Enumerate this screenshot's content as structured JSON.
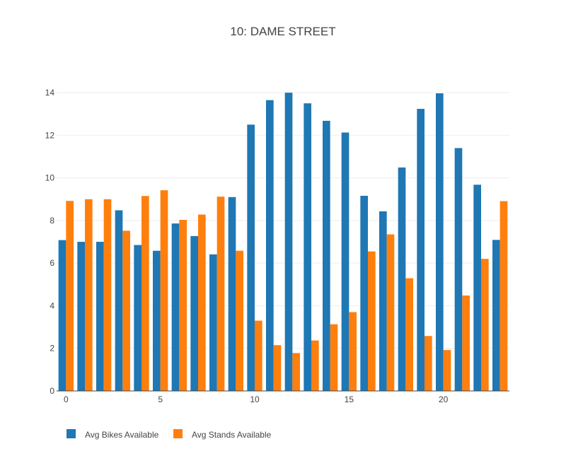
{
  "chart_data": {
    "type": "bar",
    "title": "10: DAME STREET",
    "xlabel": "",
    "ylabel": "",
    "x": [
      0,
      1,
      2,
      3,
      4,
      5,
      6,
      7,
      8,
      9,
      10,
      11,
      12,
      13,
      14,
      15,
      16,
      17,
      18,
      19,
      20,
      21,
      22,
      23
    ],
    "x_ticks": [
      0,
      5,
      10,
      15,
      20
    ],
    "y_ticks": [
      0,
      2,
      4,
      6,
      8,
      10,
      12,
      14
    ],
    "xlim": [
      -0.5,
      23.5
    ],
    "ylim": [
      0,
      14.7
    ],
    "grid": true,
    "legend_position": "bottom-left",
    "series": [
      {
        "name": "Avg Bikes Available",
        "color": "#1f77b4",
        "values": [
          7.08,
          7.0,
          7.0,
          8.48,
          6.85,
          6.58,
          7.86,
          7.27,
          6.41,
          9.1,
          12.5,
          13.65,
          14.0,
          13.5,
          12.68,
          12.13,
          9.16,
          8.43,
          10.49,
          13.24,
          13.97,
          11.4,
          9.68,
          7.09
        ]
      },
      {
        "name": "Avg Stands Available",
        "color": "#ff7f0e",
        "values": [
          8.92,
          9.0,
          9.0,
          7.52,
          9.15,
          9.42,
          8.03,
          8.28,
          9.12,
          6.58,
          3.3,
          2.15,
          1.78,
          2.37,
          3.13,
          3.7,
          6.55,
          7.35,
          5.29,
          2.58,
          1.92,
          4.48,
          6.2,
          8.91
        ]
      }
    ]
  }
}
